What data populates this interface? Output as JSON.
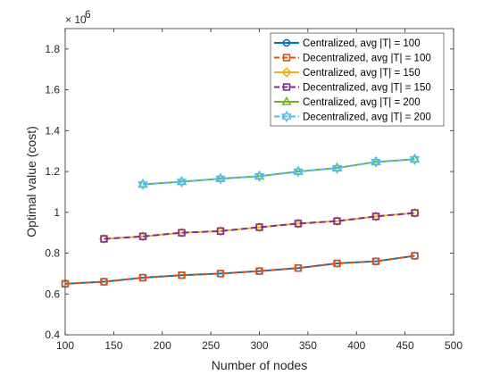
{
  "chart_data": {
    "type": "line",
    "title": "",
    "xlabel": "Number of nodes",
    "ylabel": "Optimal value (cost)",
    "exponent_base": "× 10",
    "exponent_power": "6",
    "scale_factor": 1000000,
    "xlim": [
      100,
      500
    ],
    "ylim": [
      400000,
      1900000
    ],
    "xticks": [
      100,
      150,
      200,
      250,
      300,
      350,
      400,
      450,
      500
    ],
    "yticks": [
      400000,
      600000,
      800000,
      1000000,
      1200000,
      1400000,
      1600000,
      1800000
    ],
    "ytick_labels": [
      "0.4",
      "0.6",
      "0.8",
      "1",
      "1.2",
      "1.4",
      "1.6",
      "1.8"
    ],
    "xtick_labels": [
      "100",
      "150",
      "200",
      "250",
      "300",
      "350",
      "400",
      "450",
      "500"
    ],
    "grid": false,
    "legend_position": "top-right",
    "series": [
      {
        "name": "Centralized, avg |T| = 100",
        "color": "#0072BD",
        "marker": "circle",
        "dashed": false,
        "x": [
          100,
          140,
          180,
          220,
          260,
          300,
          340,
          380,
          420,
          460
        ],
        "y": [
          650000,
          660000,
          680000,
          692000,
          700000,
          712000,
          727000,
          750000,
          760000,
          787000
        ]
      },
      {
        "name": "Decentralized, avg |T| = 100",
        "color": "#D95319",
        "marker": "square",
        "dashed": true,
        "x": [
          100,
          140,
          180,
          220,
          260,
          300,
          340,
          380,
          420,
          460
        ],
        "y": [
          650000,
          660000,
          680000,
          692000,
          700000,
          712000,
          727000,
          750000,
          760000,
          787000
        ]
      },
      {
        "name": "Centralized, avg |T| = 150",
        "color": "#EDB120",
        "marker": "diamond",
        "dashed": false,
        "x": [
          140,
          180,
          220,
          260,
          300,
          340,
          380,
          420,
          460
        ],
        "y": [
          870000,
          882000,
          900000,
          908000,
          927000,
          945000,
          957000,
          980000,
          997000
        ]
      },
      {
        "name": "Decentralized, avg |T| = 150",
        "color": "#7E2F8E",
        "marker": "square",
        "dashed": true,
        "x": [
          140,
          180,
          220,
          260,
          300,
          340,
          380,
          420,
          460
        ],
        "y": [
          870000,
          882000,
          900000,
          908000,
          927000,
          945000,
          957000,
          980000,
          997000
        ]
      },
      {
        "name": "Centralized, avg |T| = 200",
        "color": "#77AC30",
        "marker": "triangle",
        "dashed": false,
        "x": [
          180,
          220,
          260,
          300,
          340,
          380,
          420,
          460
        ],
        "y": [
          1137000,
          1150000,
          1165000,
          1177000,
          1200000,
          1217000,
          1247000,
          1260000
        ]
      },
      {
        "name": "Decentralized, avg |T| = 200",
        "color": "#4DBEEE",
        "marker": "hexagram",
        "dashed": true,
        "x": [
          180,
          220,
          260,
          300,
          340,
          380,
          420,
          460
        ],
        "y": [
          1137000,
          1150000,
          1165000,
          1177000,
          1200000,
          1217000,
          1247000,
          1260000
        ]
      }
    ]
  }
}
